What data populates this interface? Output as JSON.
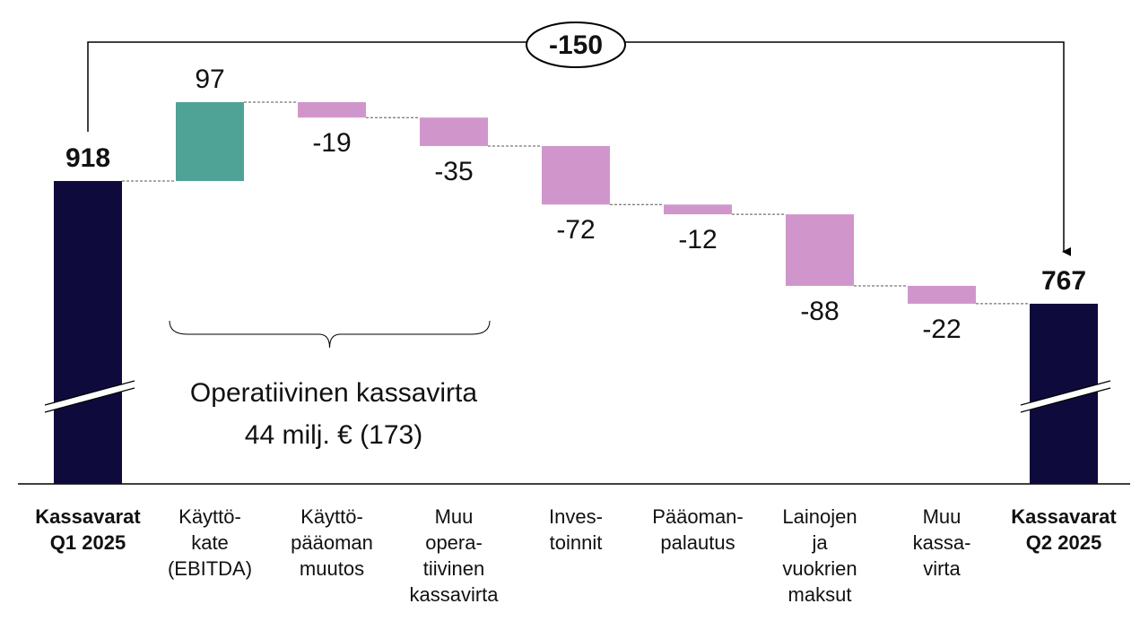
{
  "chart_data": {
    "type": "waterfall",
    "categories": [
      [
        "Kassavarat",
        "Q1 2025"
      ],
      [
        "Käyttö-",
        "kate",
        "(EBITDA)"
      ],
      [
        "Käyttö-",
        "pääoman",
        "muutos"
      ],
      [
        "Muu",
        "opera-",
        "tiivinen",
        "kassavirta"
      ],
      [
        "Inves-",
        "toinnit"
      ],
      [
        "Pääoman-",
        "palautus"
      ],
      [
        "Lainojen",
        "ja",
        "vuokrien",
        "maksut"
      ],
      [
        "Muu",
        "kassa-",
        "virta"
      ],
      [
        "Kassavarat",
        "Q2 2025"
      ]
    ],
    "values": [
      918,
      97,
      -19,
      -35,
      -72,
      -12,
      -88,
      -22,
      767
    ],
    "measures": [
      "absolute",
      "relative",
      "relative",
      "relative",
      "relative",
      "relative",
      "relative",
      "relative",
      "absolute"
    ],
    "colors": {
      "total": "#0f0a3c",
      "increase": "#4ea396",
      "decrease": "#d096cc"
    },
    "change": -150,
    "annotation": [
      "Operatiivinen kassavirta",
      "44 milj. € (173)"
    ]
  }
}
